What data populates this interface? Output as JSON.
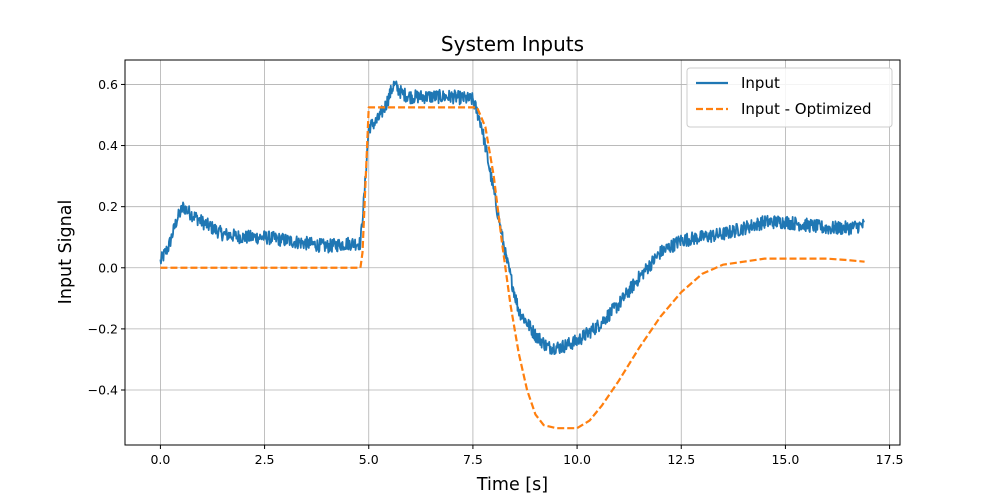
{
  "chart_data": {
    "type": "line",
    "title": "System Inputs",
    "xlabel": "Time [s]",
    "ylabel": "Input Signal",
    "xlim": [
      -0.85,
      17.75
    ],
    "ylim": [
      -0.58,
      0.68
    ],
    "grid": true,
    "legend_position": "top-right",
    "x_ticks": [
      0.0,
      2.5,
      5.0,
      7.5,
      10.0,
      12.5,
      15.0,
      17.5
    ],
    "x_tick_labels": [
      "0.0",
      "2.5",
      "5.0",
      "7.5",
      "10.0",
      "12.5",
      "15.0",
      "17.5"
    ],
    "y_ticks": [
      -0.4,
      -0.2,
      0.0,
      0.2,
      0.4,
      0.6
    ],
    "y_tick_labels": [
      "−0.4",
      "−0.2",
      "0.0",
      "0.2",
      "0.4",
      "0.6"
    ],
    "series": [
      {
        "name": "Input",
        "color": "#1f77b4",
        "style": "solid",
        "noisy": true,
        "x": [
          0.0,
          0.2,
          0.4,
          0.55,
          0.7,
          1.0,
          1.5,
          2.0,
          2.5,
          3.0,
          3.5,
          4.0,
          4.5,
          4.8,
          4.9,
          5.0,
          5.2,
          5.4,
          5.6,
          5.8,
          6.0,
          6.5,
          7.0,
          7.5,
          7.7,
          8.0,
          8.3,
          8.6,
          9.0,
          9.3,
          9.6,
          10.0,
          10.5,
          11.0,
          11.5,
          12.0,
          12.5,
          13.0,
          13.5,
          14.0,
          14.5,
          15.0,
          15.5,
          16.0,
          16.5,
          16.9
        ],
        "y": [
          0.02,
          0.07,
          0.16,
          0.2,
          0.18,
          0.15,
          0.11,
          0.1,
          0.1,
          0.09,
          0.08,
          0.07,
          0.08,
          0.08,
          0.25,
          0.46,
          0.48,
          0.53,
          0.6,
          0.57,
          0.56,
          0.56,
          0.56,
          0.55,
          0.47,
          0.25,
          0.03,
          -0.14,
          -0.22,
          -0.26,
          -0.26,
          -0.24,
          -0.19,
          -0.12,
          -0.03,
          0.05,
          0.09,
          0.1,
          0.11,
          0.13,
          0.15,
          0.15,
          0.14,
          0.13,
          0.13,
          0.14
        ]
      },
      {
        "name": "Input - Optimized",
        "color": "#ff7f0e",
        "style": "dashed",
        "noisy": false,
        "x": [
          0.0,
          4.8,
          4.85,
          5.0,
          7.6,
          7.8,
          8.0,
          8.2,
          8.4,
          8.6,
          8.8,
          9.0,
          9.2,
          9.5,
          10.0,
          10.3,
          10.6,
          11.0,
          11.5,
          12.0,
          12.5,
          13.0,
          13.5,
          14.0,
          14.5,
          15.0,
          15.5,
          16.0,
          16.5,
          16.9
        ],
        "y": [
          0.0,
          0.0,
          0.05,
          0.525,
          0.525,
          0.46,
          0.3,
          0.08,
          -0.12,
          -0.28,
          -0.4,
          -0.48,
          -0.515,
          -0.525,
          -0.525,
          -0.5,
          -0.45,
          -0.37,
          -0.26,
          -0.16,
          -0.08,
          -0.02,
          0.01,
          0.02,
          0.03,
          0.03,
          0.03,
          0.03,
          0.025,
          0.02
        ]
      }
    ]
  }
}
